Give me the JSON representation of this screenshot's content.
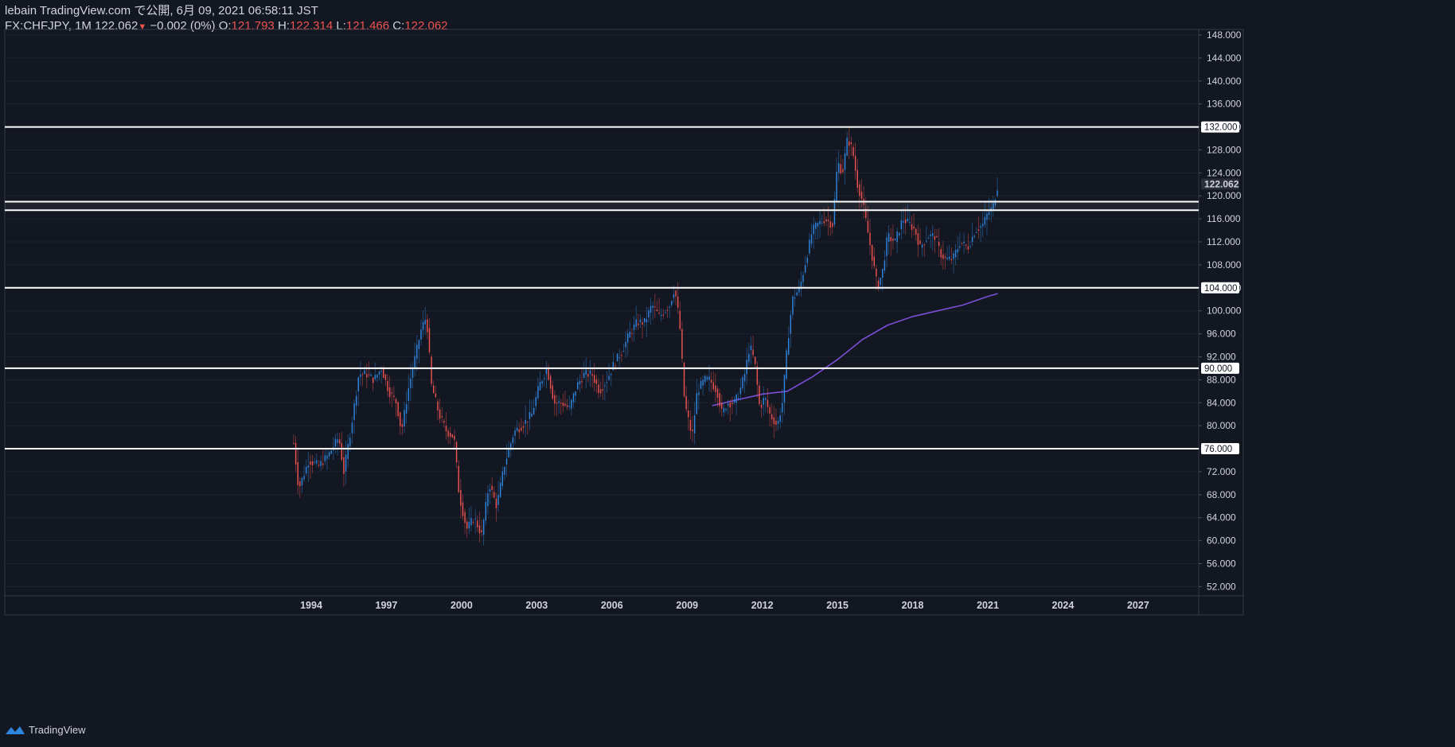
{
  "header": {
    "publish_line": "lebain TradingView.com で公開, 6月 09, 2021 06:58:11 JST",
    "symbol": "FX:CHFJPY, 1M",
    "last": "122.062",
    "down_arrow": "▼",
    "change": "−0.002 (0%)",
    "o_label": "O:",
    "o_value": "121.793",
    "h_label": "H:",
    "h_value": "122.314",
    "l_label": "L:",
    "l_value": "121.466",
    "c_label": "C:",
    "c_value": "122.062"
  },
  "footer": {
    "brand": "TradingView"
  },
  "colors": {
    "background": "#131722",
    "up": "#2f86e0",
    "down": "#ef5350",
    "ma": "#7a4fd6",
    "level": "#ffffff",
    "text": "#d1d4dc"
  },
  "chart_data": {
    "type": "candlestick",
    "symbol": "FX:CHFJPY",
    "interval": "1M",
    "ylim": [
      50,
      150
    ],
    "y_ticks": [
      "148.000",
      "144.000",
      "140.000",
      "136.000",
      "132.000",
      "128.000",
      "124.000",
      "120.000",
      "116.000",
      "112.000",
      "108.000",
      "104.000",
      "100.000",
      "96.000",
      "92.000",
      "88.000",
      "84.000",
      "80.000",
      "76.000",
      "72.000",
      "68.000",
      "64.000",
      "60.000",
      "56.000",
      "52.000"
    ],
    "x_ticks": [
      "1994",
      "1997",
      "2000",
      "2003",
      "2006",
      "2009",
      "2012",
      "2015",
      "2018",
      "2021",
      "2024",
      "2027"
    ],
    "horizontal_levels": [
      {
        "value": 132.0,
        "label": "132.000"
      },
      {
        "value": 119.0,
        "label": ""
      },
      {
        "value": 117.5,
        "label": ""
      },
      {
        "value": 104.0,
        "label": "104.000"
      },
      {
        "value": 90.0,
        "label": "90.000"
      },
      {
        "value": 76.0,
        "label": "76.000"
      }
    ],
    "last_price_label": "122.062",
    "price_path": [
      [
        "1993.3",
        77
      ],
      [
        "1993.5",
        69
      ],
      [
        "1993.9",
        74
      ],
      [
        "1994.3",
        73
      ],
      [
        "1994.7",
        75
      ],
      [
        "1995.1",
        78
      ],
      [
        "1995.3",
        72
      ],
      [
        "1995.6",
        80
      ],
      [
        "1995.9",
        89
      ],
      [
        "1996.2",
        89
      ],
      [
        "1996.5",
        88
      ],
      [
        "1996.8",
        90
      ],
      [
        "1997.1",
        86
      ],
      [
        "1997.4",
        84
      ],
      [
        "1997.6",
        79
      ],
      [
        "1997.9",
        87
      ],
      [
        "1998.1",
        91
      ],
      [
        "1998.4",
        97
      ],
      [
        "1998.6",
        99
      ],
      [
        "1998.8",
        87
      ],
      [
        "1999.1",
        82
      ],
      [
        "1999.4",
        79
      ],
      [
        "1999.7",
        78
      ],
      [
        "1999.9",
        68
      ],
      [
        "2000.2",
        62
      ],
      [
        "2000.5",
        64
      ],
      [
        "2000.8",
        61
      ],
      [
        "2001.1",
        70
      ],
      [
        "2001.4",
        66
      ],
      [
        "2001.7",
        73
      ],
      [
        "2002.1",
        79
      ],
      [
        "2002.4",
        80
      ],
      [
        "2002.8",
        82
      ],
      [
        "2003.1",
        87
      ],
      [
        "2003.4",
        90
      ],
      [
        "2003.7",
        84
      ],
      [
        "2004.0",
        84
      ],
      [
        "2004.3",
        83
      ],
      [
        "2004.6",
        87
      ],
      [
        "2004.9",
        89
      ],
      [
        "2005.2",
        89
      ],
      [
        "2005.5",
        86
      ],
      [
        "2005.8",
        88
      ],
      [
        "2006.1",
        91
      ],
      [
        "2006.4",
        93
      ],
      [
        "2006.7",
        96
      ],
      [
        "2007.0",
        98
      ],
      [
        "2007.3",
        98
      ],
      [
        "2007.6",
        101
      ],
      [
        "2007.9",
        99
      ],
      [
        "2008.3",
        101
      ],
      [
        "2008.5",
        104
      ],
      [
        "2008.7",
        98
      ],
      [
        "2008.9",
        84
      ],
      [
        "2009.0",
        82
      ],
      [
        "2009.2",
        78
      ],
      [
        "2009.4",
        86
      ],
      [
        "2009.7",
        88
      ],
      [
        "2009.9",
        88
      ],
      [
        "2010.2",
        86
      ],
      [
        "2010.4",
        82
      ],
      [
        "2010.6",
        84
      ],
      [
        "2010.9",
        84
      ],
      [
        "2011.1",
        86
      ],
      [
        "2011.3",
        89
      ],
      [
        "2011.5",
        94
      ],
      [
        "2011.7",
        91
      ],
      [
        "2011.9",
        83
      ],
      [
        "2012.1",
        85
      ],
      [
        "2012.3",
        82
      ],
      [
        "2012.6",
        80
      ],
      [
        "2012.8",
        84
      ],
      [
        "2013.0",
        94
      ],
      [
        "2013.2",
        102
      ],
      [
        "2013.5",
        104
      ],
      [
        "2013.8",
        110
      ],
      [
        "2014.0",
        114
      ],
      [
        "2014.2",
        115
      ],
      [
        "2014.5",
        116
      ],
      [
        "2014.8",
        115
      ],
      [
        "2014.9",
        120
      ],
      [
        "2015.0",
        126
      ],
      [
        "2015.2",
        124
      ],
      [
        "2015.4",
        130
      ],
      [
        "2015.6",
        128
      ],
      [
        "2015.8",
        122
      ],
      [
        "2016.0",
        119
      ],
      [
        "2016.2",
        114
      ],
      [
        "2016.4",
        109
      ],
      [
        "2016.6",
        104
      ],
      [
        "2016.8",
        107
      ],
      [
        "2017.0",
        113
      ],
      [
        "2017.3",
        112
      ],
      [
        "2017.6",
        116
      ],
      [
        "2017.9",
        115
      ],
      [
        "2018.1",
        114
      ],
      [
        "2018.3",
        111
      ],
      [
        "2018.6",
        113
      ],
      [
        "2018.9",
        113
      ],
      [
        "2019.1",
        110
      ],
      [
        "2019.3",
        109
      ],
      [
        "2019.6",
        109
      ],
      [
        "2019.9",
        112
      ],
      [
        "2020.2",
        111
      ],
      [
        "2020.5",
        114
      ],
      [
        "2020.8",
        115
      ],
      [
        "2021.0",
        117
      ],
      [
        "2021.2",
        118
      ],
      [
        "2021.4",
        122
      ]
    ],
    "moving_average": [
      [
        "2010.0",
        83.5
      ],
      [
        "2011.0",
        84.5
      ],
      [
        "2012.0",
        85.5
      ],
      [
        "2013.0",
        86
      ],
      [
        "2014.0",
        88.5
      ],
      [
        "2015.0",
        91.5
      ],
      [
        "2016.0",
        95
      ],
      [
        "2017.0",
        97.5
      ],
      [
        "2018.0",
        99
      ],
      [
        "2019.0",
        100
      ],
      [
        "2020.0",
        101
      ],
      [
        "2021.0",
        102.5
      ],
      [
        "2021.4",
        103
      ]
    ]
  }
}
